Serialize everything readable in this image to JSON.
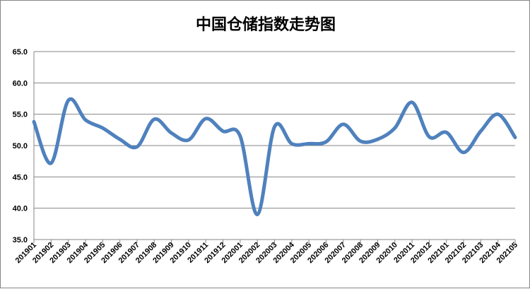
{
  "chart_data": {
    "type": "line",
    "title": "中国仓储指数走势图",
    "xlabel": "",
    "ylabel": "",
    "ylim": [
      35.0,
      65.0
    ],
    "yticks": [
      "35.0",
      "40.0",
      "45.0",
      "50.0",
      "55.0",
      "60.0",
      "65.0"
    ],
    "grid": true,
    "smooth": true,
    "line_color": "#4F81BD",
    "categories": [
      "201901",
      "201902",
      "201903",
      "201904",
      "201905",
      "201906",
      "201907",
      "201908",
      "201909",
      "201910",
      "201911",
      "201912",
      "202001",
      "202002",
      "202003",
      "202004",
      "202005",
      "202006",
      "202007",
      "202008",
      "202009",
      "202010",
      "202011",
      "202012",
      "202101",
      "202102",
      "202103",
      "202104",
      "202105"
    ],
    "values": [
      53.8,
      47.2,
      57.2,
      54.1,
      52.8,
      51.0,
      49.8,
      54.2,
      52.0,
      50.9,
      54.3,
      52.3,
      51.5,
      39.0,
      53.0,
      50.3,
      50.3,
      50.6,
      53.4,
      50.7,
      51.0,
      52.8,
      56.9,
      51.4,
      52.1,
      48.9,
      52.3,
      55.0,
      51.3
    ]
  }
}
